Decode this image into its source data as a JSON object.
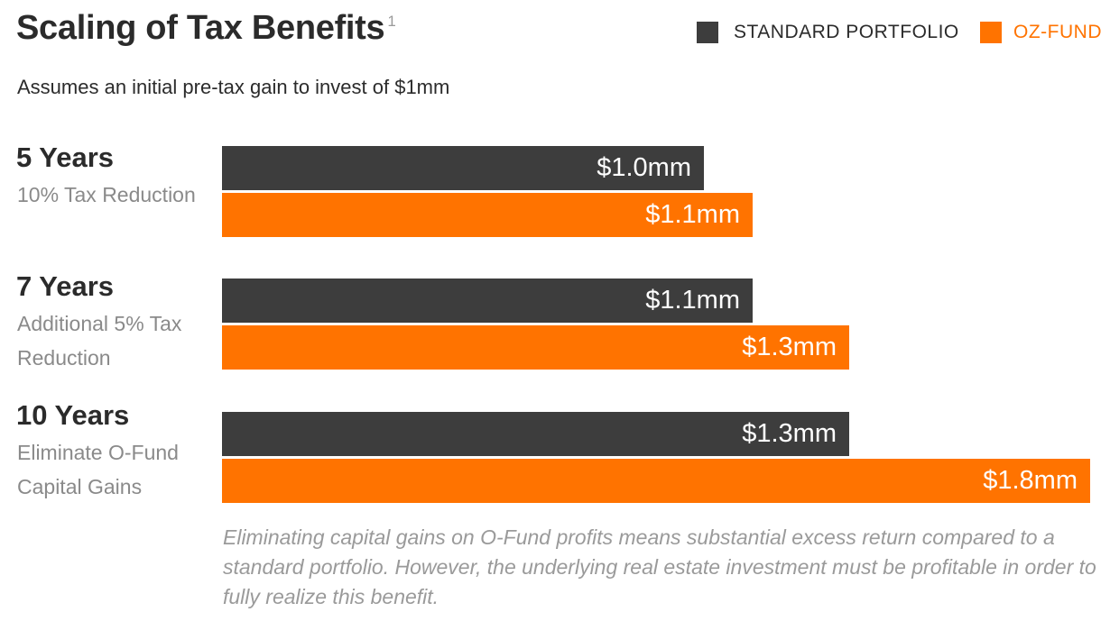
{
  "title": "Scaling of Tax Benefits",
  "title_footnote_marker": "1",
  "subtitle": "Assumes an initial pre-tax gain to invest of $1mm",
  "footnote": "Eliminating capital gains on O-Fund profits means substantial excess return compared to a standard portfolio. However, the underlying real estate investment must be profitable in order to fully realize this benefit.",
  "colors": {
    "standard": "#3d3d3d",
    "ozfund": "#ff7300",
    "text": "#2b2b2b",
    "muted": "#8a8a8a"
  },
  "chart_data": {
    "type": "bar",
    "orientation": "horizontal",
    "title": "Scaling of Tax Benefits",
    "subtitle": "Assumes an initial pre-tax gain to invest of $1mm",
    "legend_position": "top-right",
    "xlim": [
      0,
      1.8
    ],
    "grid": false,
    "categories": [
      {
        "title": "5 Years",
        "desc": "10% Tax Reduction"
      },
      {
        "title": "7 Years",
        "desc": "Additional 5% Tax Reduction"
      },
      {
        "title": "10 Years",
        "desc": "Eliminate O-Fund Capital Gains"
      }
    ],
    "series": [
      {
        "name": "STANDARD PORTFOLIO",
        "color": "#3d3d3d",
        "values": [
          1.0,
          1.1,
          1.3
        ],
        "labels": [
          "$1.0mm",
          "$1.1mm",
          "$1.3mm"
        ]
      },
      {
        "name": "OZ-FUND",
        "color": "#ff7300",
        "values": [
          1.1,
          1.3,
          1.8
        ],
        "labels": [
          "$1.1mm",
          "$1.3mm",
          "$1.8mm"
        ]
      }
    ]
  }
}
